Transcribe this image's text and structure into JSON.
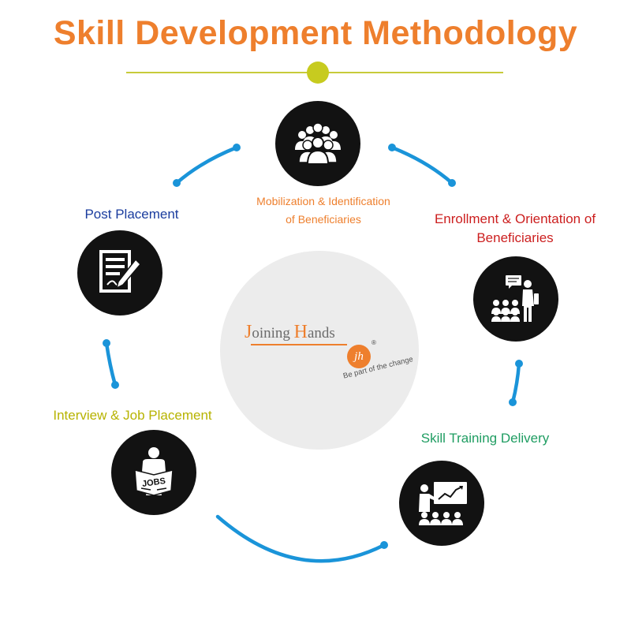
{
  "title": "Skill Development Methodology",
  "colors": {
    "title": "#ee7f2d",
    "divider": "#c7cb3a",
    "node": "#121212",
    "arc": "#1a94d9",
    "center": "#ececec",
    "mobilization": "#ee7f2d",
    "enrollment": "#cc1f1f",
    "post_placement": "#1a3c9e",
    "interview": "#b7b300",
    "skill_training": "#1f9d62"
  },
  "logo": {
    "name_first_initial": "J",
    "name_first_rest": "oining ",
    "name_second_initial": "H",
    "name_second_rest": "ands",
    "badge": "jh",
    "registered": "®",
    "tagline": "Be part of the change"
  },
  "steps": {
    "mobilization": {
      "line1": "Mobilization & Identification",
      "line2": "of Beneficiaries",
      "icon": "group-icon"
    },
    "enrollment": {
      "line1": "Enrollment & Orientation of",
      "line2": "Beneficiaries",
      "icon": "presentation-icon"
    },
    "skill_training": {
      "label": "Skill Training Delivery",
      "icon": "training-board-icon"
    },
    "interview": {
      "label": "Interview & Job Placement",
      "icon": "jobs-newspaper-icon"
    },
    "post_placement": {
      "label": "Post Placement",
      "icon": "document-pen-icon"
    }
  }
}
